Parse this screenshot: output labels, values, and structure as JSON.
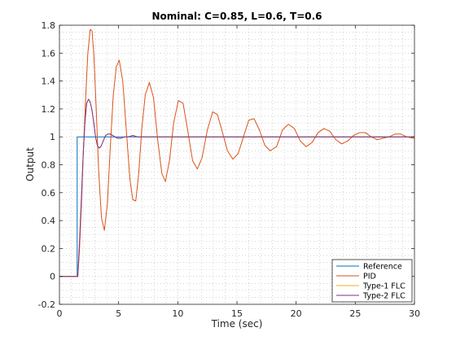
{
  "chart_data": {
    "type": "line",
    "title": "Nominal: C=0.85, L=0.6, T=0.6",
    "xlabel": "Time (sec)",
    "ylabel": "Output",
    "xlim": [
      0,
      30
    ],
    "ylim": [
      -0.2,
      1.8
    ],
    "xticks": [
      0,
      5,
      10,
      15,
      20,
      25,
      30
    ],
    "yticks": [
      -0.2,
      0,
      0.2,
      0.4,
      0.6,
      0.8,
      1,
      1.2,
      1.4,
      1.6,
      1.8
    ],
    "xtick_labels": [
      "0",
      "5",
      "10",
      "15",
      "20",
      "25",
      "30"
    ],
    "ytick_labels": [
      "-0.2",
      "0",
      "0.2",
      "0.4",
      "0.6",
      "0.8",
      "1",
      "1.2",
      "1.4",
      "1.6",
      "1.8"
    ],
    "grid": "minor dotted",
    "legend_position": "bottom-right",
    "series": [
      {
        "name": "Reference",
        "color": "#0072BD",
        "x": [
          0,
          1.5,
          1.5,
          30
        ],
        "y": [
          0,
          0,
          1,
          1
        ]
      },
      {
        "name": "PID",
        "color": "#D95319",
        "x": [
          0,
          1.55,
          1.7,
          1.85,
          2.0,
          2.2,
          2.4,
          2.6,
          2.75,
          2.9,
          3.1,
          3.3,
          3.55,
          3.8,
          4.05,
          4.3,
          4.55,
          4.8,
          5.05,
          5.35,
          5.65,
          5.95,
          6.2,
          6.45,
          6.7,
          6.95,
          7.25,
          7.6,
          7.95,
          8.3,
          8.65,
          8.95,
          9.3,
          9.65,
          10.05,
          10.45,
          10.85,
          11.25,
          11.65,
          12.05,
          12.5,
          12.95,
          13.35,
          13.75,
          14.2,
          14.65,
          15.1,
          15.55,
          16.0,
          16.45,
          16.9,
          17.35,
          17.8,
          18.35,
          18.85,
          19.35,
          19.85,
          20.35,
          20.85,
          21.35,
          21.85,
          22.35,
          22.85,
          23.35,
          23.85,
          24.35,
          24.85,
          25.35,
          25.85,
          26.35,
          26.85,
          27.35,
          27.85,
          28.35,
          28.85,
          29.35,
          29.85,
          30.0
        ],
        "y": [
          0,
          0,
          0.2,
          0.5,
          0.85,
          1.25,
          1.6,
          1.77,
          1.76,
          1.6,
          1.22,
          0.78,
          0.42,
          0.33,
          0.52,
          0.93,
          1.3,
          1.5,
          1.55,
          1.4,
          1.05,
          0.7,
          0.55,
          0.54,
          0.74,
          1.05,
          1.3,
          1.39,
          1.28,
          0.98,
          0.74,
          0.68,
          0.83,
          1.1,
          1.26,
          1.24,
          1.04,
          0.83,
          0.77,
          0.85,
          1.05,
          1.18,
          1.16,
          1.04,
          0.9,
          0.84,
          0.88,
          1.0,
          1.12,
          1.13,
          1.05,
          0.94,
          0.9,
          0.93,
          1.05,
          1.09,
          1.06,
          0.97,
          0.93,
          0.96,
          1.03,
          1.06,
          1.04,
          0.98,
          0.95,
          0.97,
          1.01,
          1.03,
          1.03,
          1.0,
          0.98,
          0.99,
          1.0,
          1.02,
          1.02,
          1.0,
          0.99,
          0.99
        ]
      },
      {
        "name": "Type-1 FLC",
        "color": "#EDB120",
        "x": [
          0,
          1.55,
          1.7,
          1.85,
          2.0,
          2.15,
          2.3,
          2.45,
          2.6,
          2.75,
          2.9,
          3.05,
          3.2,
          3.35,
          3.5,
          3.7,
          3.9,
          4.1,
          4.3,
          4.5,
          4.7,
          4.9,
          5.2,
          5.5,
          5.8,
          6.2,
          6.6,
          7.0,
          30.0
        ],
        "y": [
          0,
          0,
          0.25,
          0.55,
          0.86,
          1.1,
          1.24,
          1.27,
          1.25,
          1.19,
          1.1,
          1.0,
          0.94,
          0.92,
          0.93,
          0.97,
          1.01,
          1.02,
          1.02,
          1.01,
          1.0,
          0.99,
          0.99,
          1.0,
          1.0,
          1.01,
          1.0,
          1.0,
          1.0
        ]
      },
      {
        "name": "Type-2 FLC",
        "color": "#7E2F8E",
        "x": [
          0,
          1.55,
          1.7,
          1.85,
          2.0,
          2.15,
          2.3,
          2.45,
          2.6,
          2.75,
          2.9,
          3.05,
          3.2,
          3.35,
          3.5,
          3.7,
          3.9,
          4.1,
          4.3,
          4.5,
          4.7,
          4.9,
          5.2,
          5.5,
          5.8,
          6.2,
          6.6,
          7.0,
          30.0
        ],
        "y": [
          0,
          0,
          0.25,
          0.55,
          0.86,
          1.1,
          1.24,
          1.27,
          1.25,
          1.19,
          1.1,
          1.0,
          0.94,
          0.92,
          0.93,
          0.97,
          1.01,
          1.02,
          1.02,
          1.01,
          1.0,
          0.99,
          0.99,
          1.0,
          1.0,
          1.01,
          1.0,
          1.0,
          1.0
        ]
      }
    ]
  }
}
